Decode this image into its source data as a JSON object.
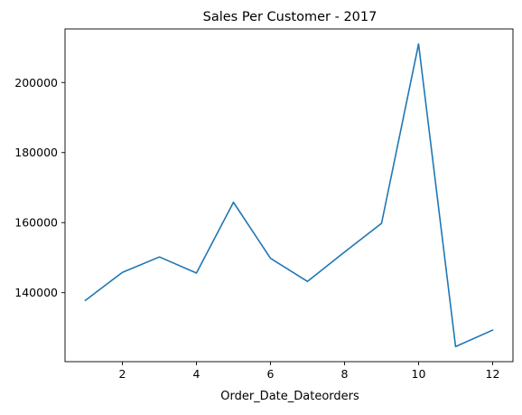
{
  "chart_data": {
    "type": "line",
    "title": "Sales Per Customer - 2017",
    "xlabel": "Order_Date_Dateorders",
    "ylabel": "",
    "x": [
      1,
      2,
      3,
      4,
      5,
      6,
      7,
      8,
      9,
      10,
      11,
      12
    ],
    "series": [
      {
        "values": [
          137800,
          145800,
          150200,
          145600,
          165800,
          149800,
          143200,
          151600,
          159800,
          211000,
          124600,
          129300
        ],
        "color": "#1f77b4"
      }
    ],
    "xlim": [
      0.45,
      12.55
    ],
    "ylim": [
      120300,
      215300
    ],
    "xticks": [
      2,
      4,
      6,
      8,
      10,
      12
    ],
    "yticks": [
      140000,
      160000,
      180000,
      200000
    ],
    "grid": false,
    "legend": false
  }
}
